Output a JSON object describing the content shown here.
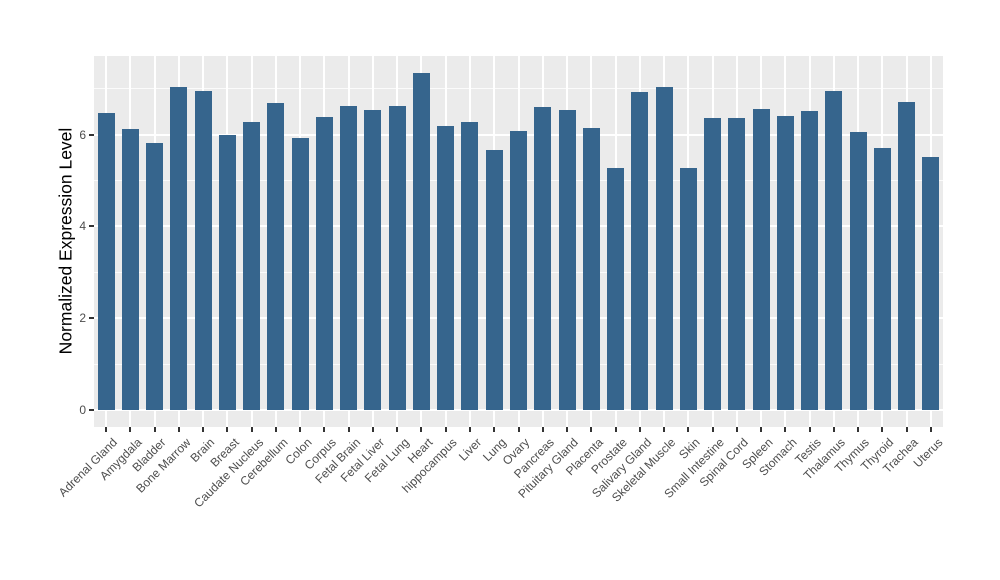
{
  "chart_data": {
    "type": "bar",
    "ylabel": "Normalized Expression Level",
    "categories": [
      "Adrenal Gland",
      "Amygdala",
      "Bladder",
      "Bone Marrow",
      "Brain",
      "Breast",
      "Caudate Nucleus",
      "Cerebellum",
      "Colon",
      "Corpus",
      "Fetal Brain",
      "Fetal Liver",
      "Fetal Lung",
      "Heart",
      "hippocampus",
      "Liver",
      "Lung",
      "Ovary",
      "Pancreas",
      "Pituitary Gland",
      "Placenta",
      "Prostate",
      "Salivary Gland",
      "Skeletal Muscle",
      "Skin",
      "Small Intestine",
      "Spinal Cord",
      "Spleen",
      "Stomach",
      "Testis",
      "Thalamus",
      "Thymus",
      "Thyroid",
      "Trachea",
      "Uterus"
    ],
    "values": [
      6.47,
      6.13,
      5.82,
      7.03,
      6.94,
      5.99,
      6.27,
      6.68,
      5.93,
      6.39,
      6.62,
      6.54,
      6.62,
      7.34,
      6.18,
      6.28,
      5.66,
      6.07,
      6.59,
      6.54,
      6.15,
      5.26,
      6.93,
      7.03,
      5.26,
      6.36,
      6.37,
      6.56,
      6.41,
      6.52,
      6.94,
      6.06,
      5.71,
      6.7,
      5.52
    ],
    "y_axis": {
      "tick_labels": [
        "0",
        "2",
        "4",
        "6"
      ],
      "major_ticks": [
        0,
        2,
        4,
        6
      ],
      "minor_ticks": [
        1,
        3,
        5,
        7
      ],
      "ylim": [
        -0.37,
        7.71
      ]
    },
    "x_tick_rotation_deg": 45,
    "grid": true,
    "legend": "none",
    "colors": {
      "bar": "#36658D",
      "panel_background": "#EBEBEB",
      "gridline": "#FFFFFF",
      "tick_text": "#4D4D4D",
      "tick_mark": "#333333",
      "axis_title_text": "#000000",
      "figure_background": "#FFFFFF"
    }
  }
}
